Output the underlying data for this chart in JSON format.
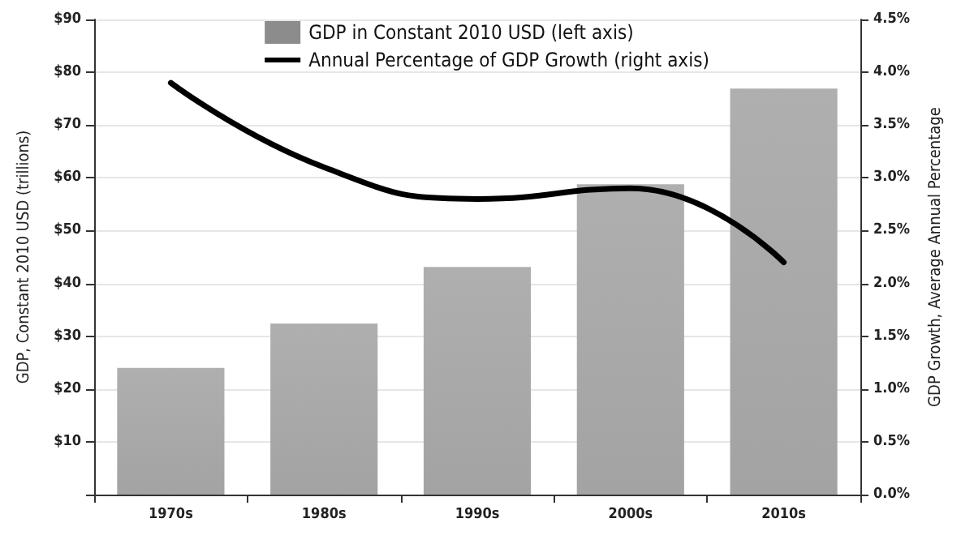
{
  "chart_data": {
    "type": "bar",
    "categories": [
      "1970s",
      "1980s",
      "1990s",
      "2000s",
      "2010s"
    ],
    "ylabel": "GDP, Constant 2010 USD (trillions)",
    "y2label": "GDP Growth, Average Annual Percentage",
    "series": [
      {
        "name": "GDP in Constant 2010 USD (left axis)",
        "color": "#8c8c8c",
        "values": [
          24,
          32.4,
          43.1,
          58.8,
          76.9
        ]
      },
      {
        "name": "Annual Percentage of GDP Growth (right axis)",
        "type": "line",
        "axis": "y2",
        "color": "#000000",
        "values": [
          3.9,
          3.1,
          2.8,
          2.9,
          2.2
        ]
      }
    ],
    "ylim": [
      0,
      90
    ],
    "yticks": [
      {
        "value": 0,
        "label": null
      },
      {
        "value": 10,
        "label": "$10"
      },
      {
        "value": 20,
        "label": "$20"
      },
      {
        "value": 30,
        "label": "$30"
      },
      {
        "value": 40,
        "label": "$40"
      },
      {
        "value": 50,
        "label": "$50"
      },
      {
        "value": 60,
        "label": "$60"
      },
      {
        "value": 70,
        "label": "$70"
      },
      {
        "value": 80,
        "label": "$80"
      },
      {
        "value": 90,
        "label": "$90"
      }
    ],
    "y2lim": [
      0,
      4.5
    ],
    "y2ticks": [
      {
        "value": 0,
        "label": "0.0%"
      },
      {
        "value": 0.5,
        "label": "0.5%"
      },
      {
        "value": 1,
        "label": "1.0%"
      },
      {
        "value": 1.5,
        "label": "1.5%"
      },
      {
        "value": 2,
        "label": "2.0%"
      },
      {
        "value": 2.5,
        "label": "2.5%"
      },
      {
        "value": 3,
        "label": "3.0%"
      },
      {
        "value": 3.5,
        "label": "3.5%"
      },
      {
        "value": 4,
        "label": "4.0%"
      },
      {
        "value": 4.5,
        "label": "4.5%"
      }
    ],
    "grid": "y",
    "legend": "top",
    "marker": "none",
    "line_style": "solid"
  }
}
